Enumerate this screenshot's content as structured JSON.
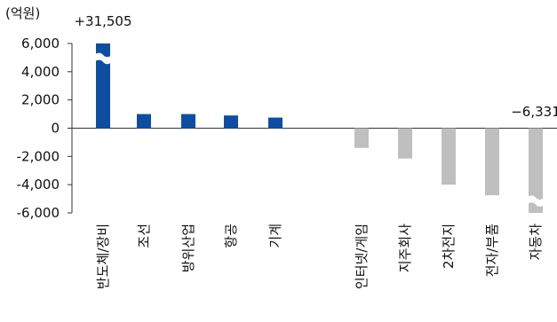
{
  "chart_data": {
    "type": "bar",
    "unit_label": "(억원)",
    "categories": [
      "반도체/장비",
      "조선",
      "방위산업",
      "항공",
      "기계",
      "인터넷/게임",
      "지주회사",
      "2차전지",
      "전자/부품",
      "자동차"
    ],
    "values": [
      31505,
      1000,
      1000,
      900,
      750,
      -1400,
      -2150,
      -4000,
      -4750,
      -6331
    ],
    "value_labels": [
      "+31,505",
      "",
      "",
      "",
      "",
      "",
      "",
      "",
      "",
      "−6,331"
    ],
    "ylim": [
      -6000,
      6000
    ],
    "yticks": [
      6000,
      4000,
      2000,
      0,
      -2000,
      -4000,
      -6000
    ],
    "ytick_labels": [
      "6,000",
      "4,000",
      "2,000",
      "0",
      "-2,000",
      "-4,000",
      "-6,000"
    ],
    "colors": {
      "positive": "#0d4ea3",
      "negative": "#bfbfbf",
      "axis": "#333333",
      "text": "#111111"
    },
    "axis_break": true,
    "grid": false,
    "legend": "none"
  }
}
